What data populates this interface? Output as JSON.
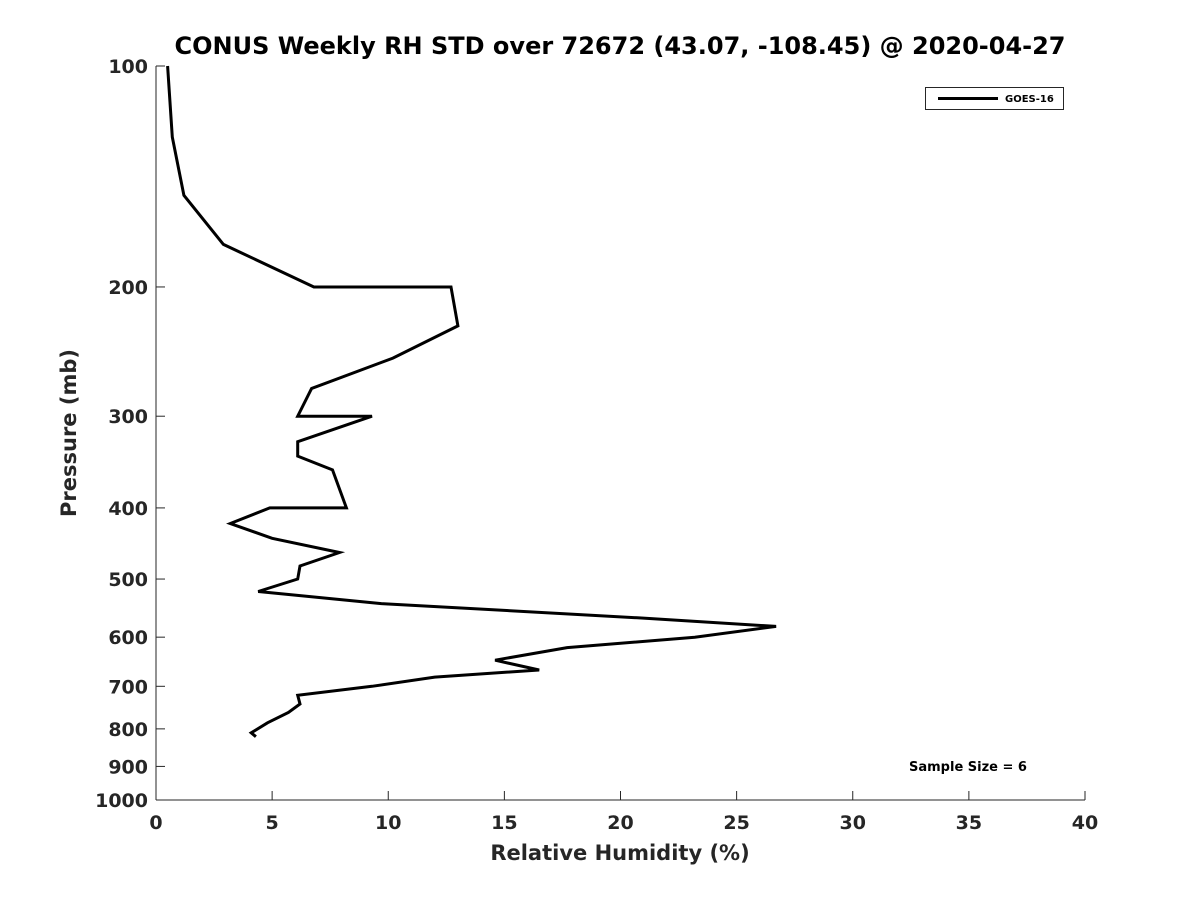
{
  "chart_data": {
    "type": "line",
    "title": "CONUS Weekly RH STD over 72672 (43.07, -108.45) @ 2020-04-27",
    "xlabel": "Relative Humidity (%)",
    "ylabel": "Pressure (mb)",
    "xlim": [
      0,
      40
    ],
    "ylim": [
      100,
      1000
    ],
    "y_scale": "log",
    "y_reversed": true,
    "grid": false,
    "legend_position": "top-right",
    "x_ticks": [
      0,
      5,
      10,
      15,
      20,
      25,
      30,
      35,
      40
    ],
    "y_ticks": [
      100,
      200,
      300,
      400,
      500,
      600,
      700,
      800,
      900,
      1000
    ],
    "series": [
      {
        "name": "GOES-16",
        "color": "#000000",
        "points": [
          {
            "x": 0.5,
            "y": 100
          },
          {
            "x": 0.7,
            "y": 125
          },
          {
            "x": 1.2,
            "y": 150
          },
          {
            "x": 2.9,
            "y": 175
          },
          {
            "x": 6.8,
            "y": 200
          },
          {
            "x": 12.7,
            "y": 200
          },
          {
            "x": 13.0,
            "y": 226
          },
          {
            "x": 10.2,
            "y": 250
          },
          {
            "x": 6.7,
            "y": 275
          },
          {
            "x": 6.1,
            "y": 300
          },
          {
            "x": 9.3,
            "y": 300
          },
          {
            "x": 6.1,
            "y": 325
          },
          {
            "x": 6.1,
            "y": 340
          },
          {
            "x": 7.6,
            "y": 355
          },
          {
            "x": 8.2,
            "y": 400
          },
          {
            "x": 4.9,
            "y": 400
          },
          {
            "x": 3.2,
            "y": 420
          },
          {
            "x": 5.0,
            "y": 440
          },
          {
            "x": 7.9,
            "y": 460
          },
          {
            "x": 6.2,
            "y": 480
          },
          {
            "x": 6.1,
            "y": 500
          },
          {
            "x": 4.4,
            "y": 520
          },
          {
            "x": 9.7,
            "y": 540
          },
          {
            "x": 20.9,
            "y": 565
          },
          {
            "x": 26.7,
            "y": 580
          },
          {
            "x": 23.2,
            "y": 600
          },
          {
            "x": 17.7,
            "y": 620
          },
          {
            "x": 14.6,
            "y": 645
          },
          {
            "x": 16.5,
            "y": 665
          },
          {
            "x": 12.0,
            "y": 680
          },
          {
            "x": 9.3,
            "y": 700
          },
          {
            "x": 6.1,
            "y": 720
          },
          {
            "x": 6.2,
            "y": 740
          },
          {
            "x": 5.7,
            "y": 760
          },
          {
            "x": 4.8,
            "y": 785
          },
          {
            "x": 4.1,
            "y": 810
          },
          {
            "x": 4.3,
            "y": 820
          }
        ]
      }
    ],
    "annotations": [
      "Sample Size = 6"
    ]
  }
}
